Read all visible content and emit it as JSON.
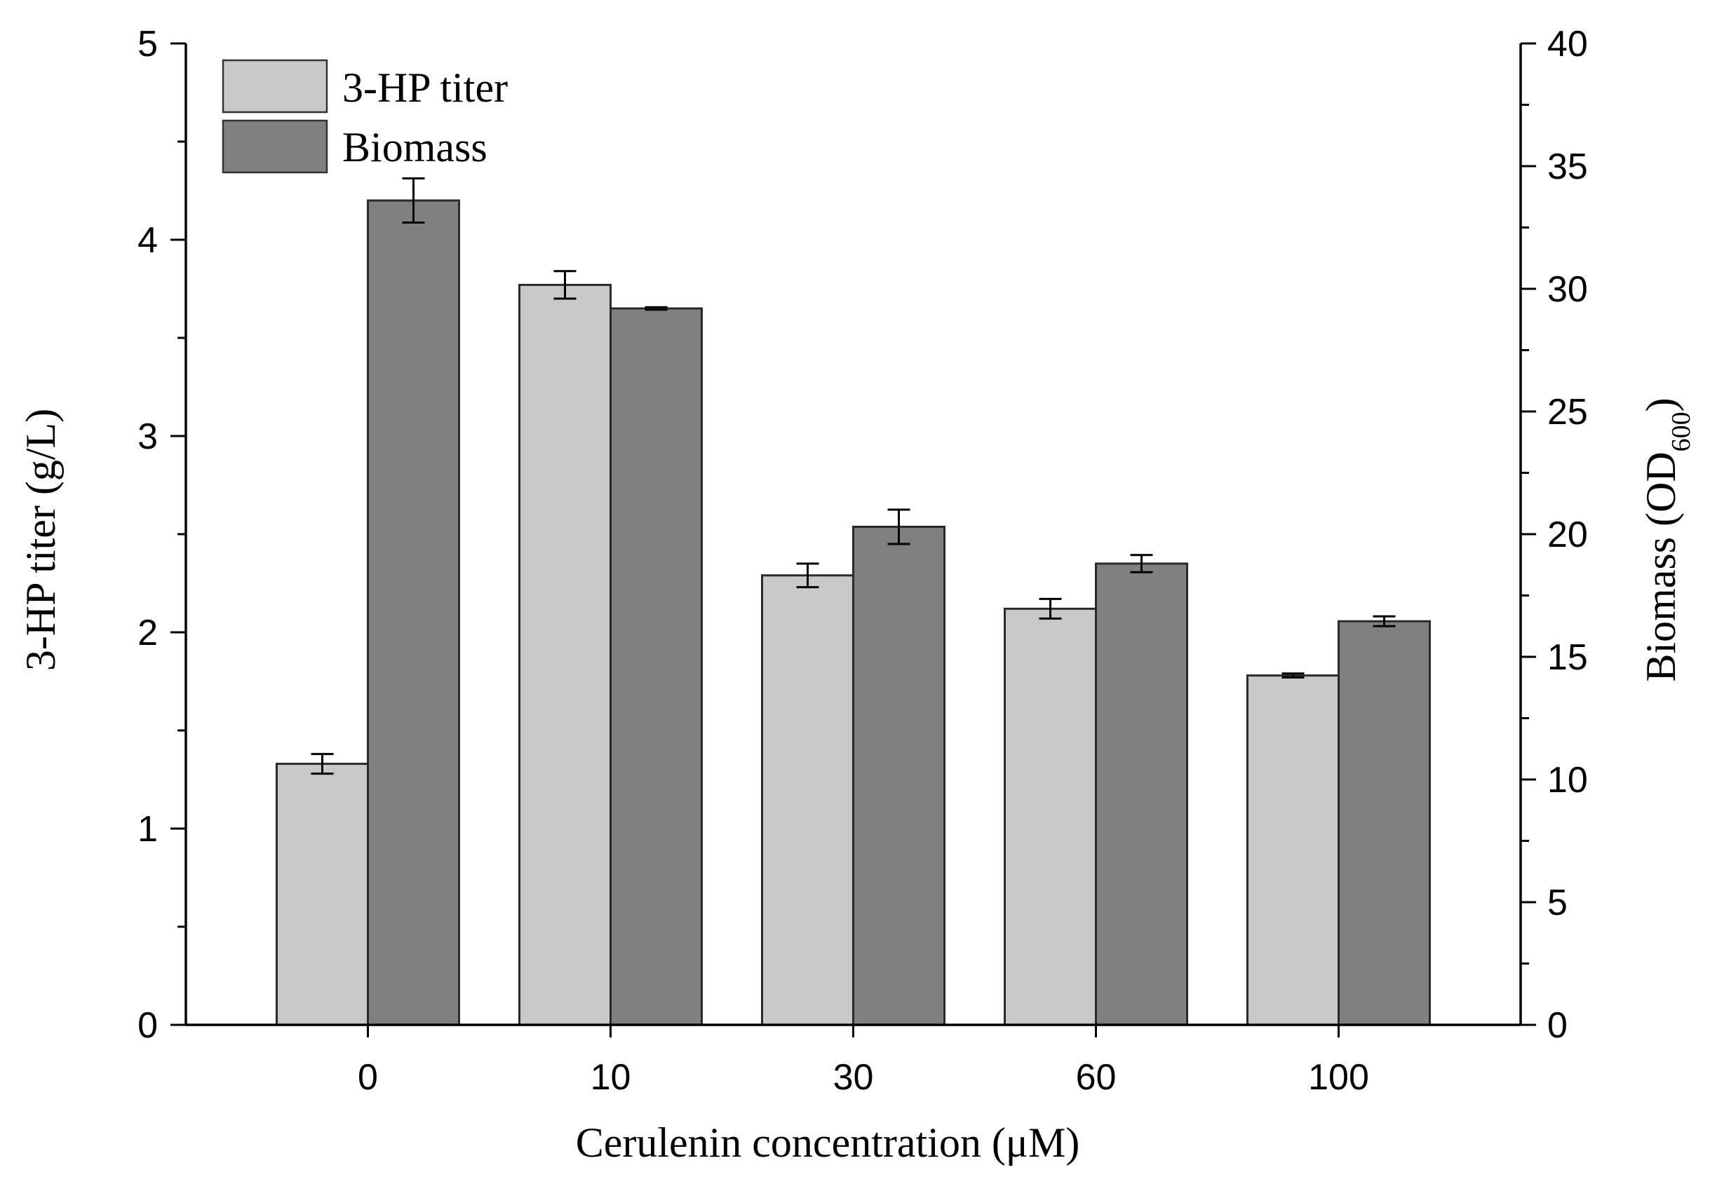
{
  "chart_data": {
    "type": "bar",
    "xlabel": "Cerulenin concentration (μM)",
    "ylabel": "3-HP titer (g/L)",
    "ylabel_right": "Biomass (OD",
    "ylabel_right_sub": "600",
    "ylabel_right_close": ")",
    "categories": [
      "0",
      "10",
      "30",
      "60",
      "100"
    ],
    "ylim": [
      0,
      5
    ],
    "ylim_right": [
      0,
      40
    ],
    "yticks": [
      "0",
      "1",
      "2",
      "3",
      "4",
      "5"
    ],
    "yticks_right": [
      "0",
      "5",
      "10",
      "15",
      "20",
      "25",
      "30",
      "35",
      "40"
    ],
    "legend_position": "top-left",
    "series": [
      {
        "name": "3-HP titer",
        "axis": "left",
        "color": "#c8c8c8",
        "values": [
          1.33,
          3.77,
          2.29,
          2.12,
          1.78
        ],
        "errors": [
          0.05,
          0.07,
          0.06,
          0.05,
          0.01
        ]
      },
      {
        "name": "Biomass",
        "axis": "right",
        "color": "#808080",
        "values": [
          33.6,
          29.2,
          20.3,
          18.8,
          16.45
        ],
        "errors": [
          0.9,
          0.05,
          0.7,
          0.35,
          0.2
        ]
      }
    ]
  }
}
